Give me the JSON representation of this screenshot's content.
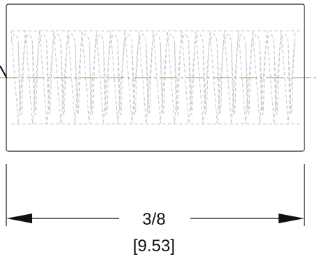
{
  "dimension": {
    "fraction": "3/8",
    "metric": "[9.53]"
  },
  "colors": {
    "outline": "#222222",
    "hidden_thread": "#c9c9cf",
    "centerline": "#b08c6a",
    "dimension_line": "#111111"
  }
}
